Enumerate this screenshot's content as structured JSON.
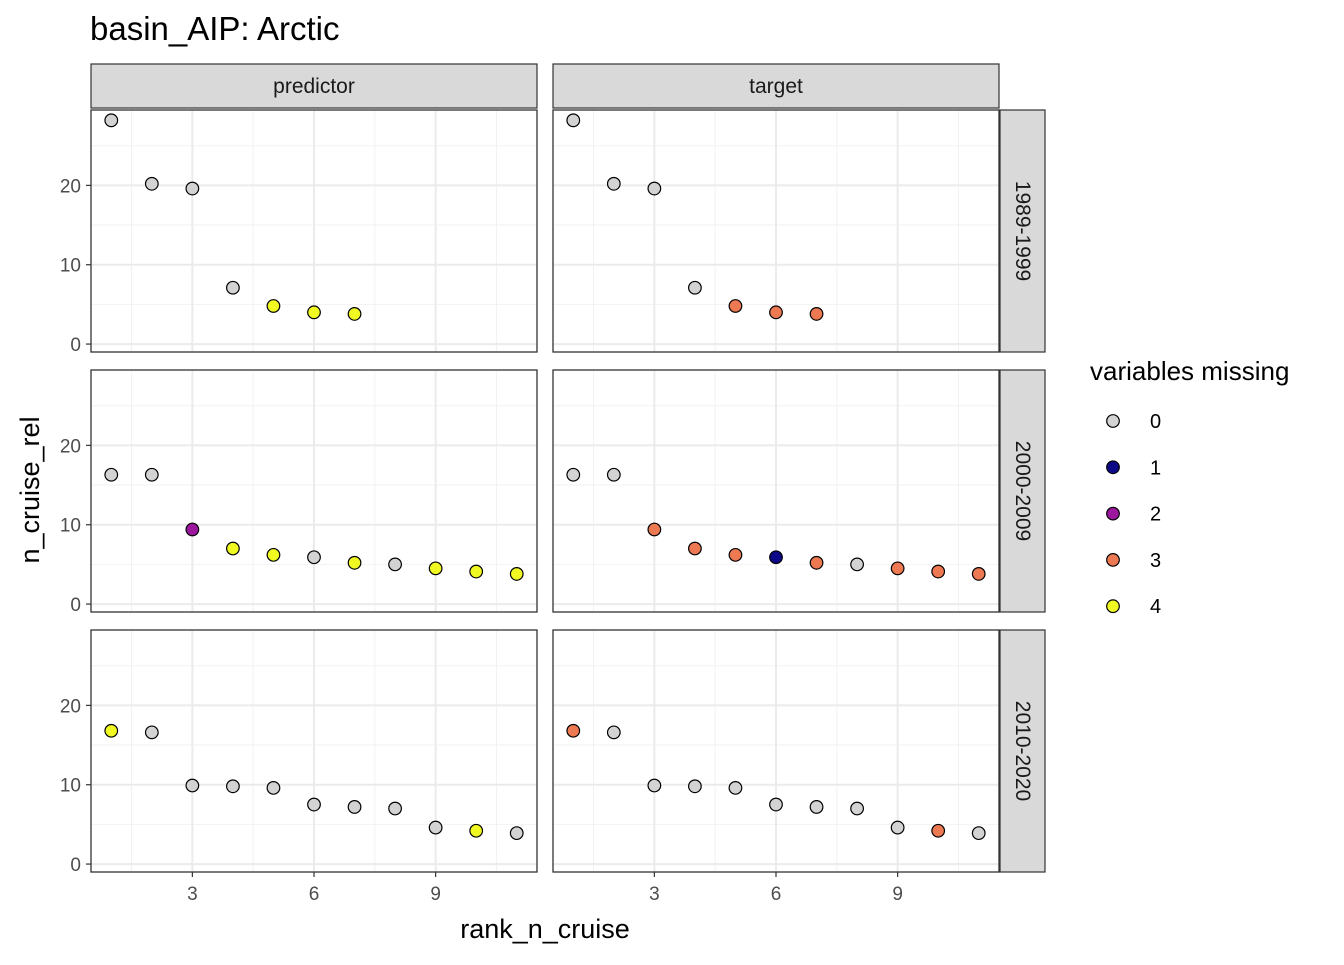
{
  "chart_data": {
    "type": "scatter",
    "title": "basin_AIP: Arctic",
    "xlabel": "rank_n_cruise",
    "ylabel": "n_cruise_rel",
    "xlim": [
      0.5,
      11.5
    ],
    "ylim": [
      -1,
      29.5
    ],
    "x_ticks": [
      3,
      6,
      9
    ],
    "y_ticks": [
      0,
      10,
      20
    ],
    "columns": [
      "predictor",
      "target"
    ],
    "rows": [
      "1989-1999",
      "2000-2009",
      "2010-2020"
    ],
    "legend": {
      "title": "variables missing",
      "entries": [
        {
          "label": "0",
          "color": "#d3d3d3"
        },
        {
          "label": "1",
          "color": "#0c0887"
        },
        {
          "label": "2",
          "color": "#9c179e"
        },
        {
          "label": "3",
          "color": "#ed7953"
        },
        {
          "label": "4",
          "color": "#f0f921"
        }
      ]
    },
    "panels": [
      {
        "row": "1989-1999",
        "col": "predictor",
        "points": [
          {
            "x": 1,
            "y": 28.2,
            "missing": "0"
          },
          {
            "x": 2,
            "y": 20.2,
            "missing": "0"
          },
          {
            "x": 3,
            "y": 19.6,
            "missing": "0"
          },
          {
            "x": 4,
            "y": 7.1,
            "missing": "0"
          },
          {
            "x": 5,
            "y": 4.8,
            "missing": "4"
          },
          {
            "x": 6,
            "y": 4.0,
            "missing": "4"
          },
          {
            "x": 7,
            "y": 3.8,
            "missing": "4"
          }
        ]
      },
      {
        "row": "1989-1999",
        "col": "target",
        "points": [
          {
            "x": 1,
            "y": 28.2,
            "missing": "0"
          },
          {
            "x": 2,
            "y": 20.2,
            "missing": "0"
          },
          {
            "x": 3,
            "y": 19.6,
            "missing": "0"
          },
          {
            "x": 4,
            "y": 7.1,
            "missing": "0"
          },
          {
            "x": 5,
            "y": 4.8,
            "missing": "3"
          },
          {
            "x": 6,
            "y": 4.0,
            "missing": "3"
          },
          {
            "x": 7,
            "y": 3.8,
            "missing": "3"
          }
        ]
      },
      {
        "row": "2000-2009",
        "col": "predictor",
        "points": [
          {
            "x": 1,
            "y": 16.3,
            "missing": "0"
          },
          {
            "x": 2,
            "y": 16.3,
            "missing": "0"
          },
          {
            "x": 3,
            "y": 9.4,
            "missing": "2"
          },
          {
            "x": 4,
            "y": 7.0,
            "missing": "4"
          },
          {
            "x": 5,
            "y": 6.2,
            "missing": "4"
          },
          {
            "x": 6,
            "y": 5.9,
            "missing": "0"
          },
          {
            "x": 7,
            "y": 5.2,
            "missing": "4"
          },
          {
            "x": 8,
            "y": 5.0,
            "missing": "0"
          },
          {
            "x": 9,
            "y": 4.5,
            "missing": "4"
          },
          {
            "x": 10,
            "y": 4.1,
            "missing": "4"
          },
          {
            "x": 11,
            "y": 3.8,
            "missing": "4"
          }
        ]
      },
      {
        "row": "2000-2009",
        "col": "target",
        "points": [
          {
            "x": 1,
            "y": 16.3,
            "missing": "0"
          },
          {
            "x": 2,
            "y": 16.3,
            "missing": "0"
          },
          {
            "x": 3,
            "y": 9.4,
            "missing": "3"
          },
          {
            "x": 4,
            "y": 7.0,
            "missing": "3"
          },
          {
            "x": 5,
            "y": 6.2,
            "missing": "3"
          },
          {
            "x": 6,
            "y": 5.9,
            "missing": "1"
          },
          {
            "x": 7,
            "y": 5.2,
            "missing": "3"
          },
          {
            "x": 8,
            "y": 5.0,
            "missing": "0"
          },
          {
            "x": 9,
            "y": 4.5,
            "missing": "3"
          },
          {
            "x": 10,
            "y": 4.1,
            "missing": "3"
          },
          {
            "x": 11,
            "y": 3.8,
            "missing": "3"
          }
        ]
      },
      {
        "row": "2010-2020",
        "col": "predictor",
        "points": [
          {
            "x": 1,
            "y": 16.8,
            "missing": "4"
          },
          {
            "x": 2,
            "y": 16.6,
            "missing": "0"
          },
          {
            "x": 3,
            "y": 9.9,
            "missing": "0"
          },
          {
            "x": 4,
            "y": 9.8,
            "missing": "0"
          },
          {
            "x": 5,
            "y": 9.6,
            "missing": "0"
          },
          {
            "x": 6,
            "y": 7.5,
            "missing": "0"
          },
          {
            "x": 7,
            "y": 7.2,
            "missing": "0"
          },
          {
            "x": 8,
            "y": 7.0,
            "missing": "0"
          },
          {
            "x": 9,
            "y": 4.6,
            "missing": "0"
          },
          {
            "x": 10,
            "y": 4.2,
            "missing": "4"
          },
          {
            "x": 11,
            "y": 3.9,
            "missing": "0"
          }
        ]
      },
      {
        "row": "2010-2020",
        "col": "target",
        "points": [
          {
            "x": 1,
            "y": 16.8,
            "missing": "3"
          },
          {
            "x": 2,
            "y": 16.6,
            "missing": "0"
          },
          {
            "x": 3,
            "y": 9.9,
            "missing": "0"
          },
          {
            "x": 4,
            "y": 9.8,
            "missing": "0"
          },
          {
            "x": 5,
            "y": 9.6,
            "missing": "0"
          },
          {
            "x": 6,
            "y": 7.5,
            "missing": "0"
          },
          {
            "x": 7,
            "y": 7.2,
            "missing": "0"
          },
          {
            "x": 8,
            "y": 7.0,
            "missing": "0"
          },
          {
            "x": 9,
            "y": 4.6,
            "missing": "0"
          },
          {
            "x": 10,
            "y": 4.2,
            "missing": "3"
          },
          {
            "x": 11,
            "y": 3.9,
            "missing": "0"
          }
        ]
      }
    ]
  }
}
